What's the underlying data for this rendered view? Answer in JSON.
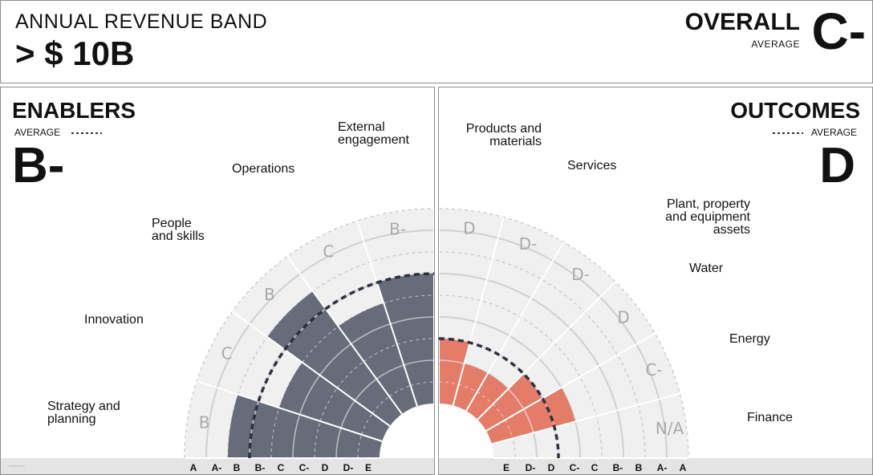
{
  "header": {
    "band_label": "ANNUAL REVENUE BAND",
    "band_value": "> $ 10B",
    "overall_label": "OVERALL",
    "overall_sub": "AVERAGE",
    "overall_grade": "C-"
  },
  "colors": {
    "enablers_fill": "#666c79",
    "outcomes_fill": "#e47c6a",
    "background_band": "#f0f0f0",
    "average_line": "#2e3240"
  },
  "chart_data": [
    {
      "type": "polar-bar",
      "title": "ENABLERS",
      "average_label": "AVERAGE",
      "average_grade": "B-",
      "axis_ticks": [
        "A",
        "A-",
        "B",
        "B-",
        "C",
        "C-",
        "D",
        "D-",
        "E"
      ],
      "scale": [
        "E",
        "D-",
        "D",
        "C-",
        "C",
        "B-",
        "B",
        "A-",
        "A"
      ],
      "categories": [
        "Strategy and planning",
        "Innovation",
        "People and skills",
        "Operations",
        "External engagement"
      ],
      "grades": [
        "B",
        "C",
        "B",
        "C",
        "B-"
      ],
      "average_level": 6
    },
    {
      "type": "polar-bar",
      "title": "OUTCOMES",
      "average_label": "AVERAGE",
      "average_grade": "D",
      "axis_ticks": [
        "E",
        "D-",
        "D",
        "C-",
        "C",
        "B-",
        "B",
        "A-",
        "A"
      ],
      "scale": [
        "E",
        "D-",
        "D",
        "C-",
        "C",
        "B-",
        "B",
        "A-",
        "A"
      ],
      "categories": [
        "Products and materials",
        "Services",
        "Plant, property and equipment assets",
        "Water",
        "Energy",
        "Finance"
      ],
      "grades": [
        "D",
        "D-",
        "D-",
        "D",
        "C-",
        "N/A"
      ],
      "average_level": 3
    }
  ]
}
